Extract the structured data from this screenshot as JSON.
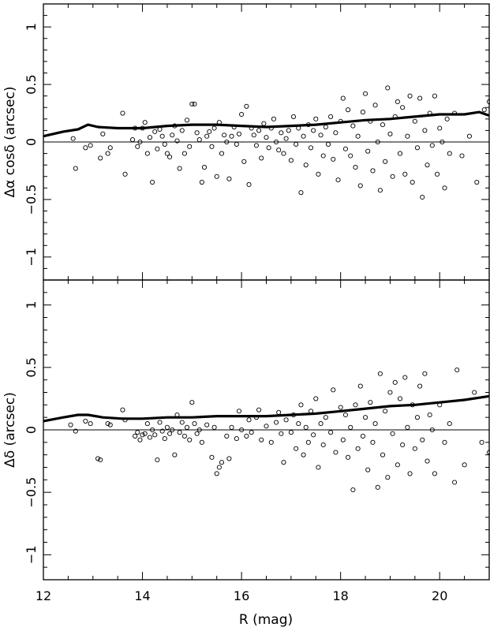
{
  "chart_data": [
    {
      "type": "scatter",
      "panel": "top",
      "ylabel": "Δα cosδ  (arcsec)",
      "xlim": [
        12,
        21
      ],
      "ylim": [
        -1.2,
        1.2
      ],
      "yticks": [
        -1,
        -0.5,
        0,
        0.5,
        1
      ],
      "ytick_labels": [
        "−1",
        "−0.5",
        "0",
        "0.5",
        "1"
      ],
      "zero_line": 0,
      "trend": {
        "x": [
          12.0,
          12.4,
          12.7,
          12.9,
          13.1,
          13.5,
          14.0,
          14.5,
          15.0,
          15.5,
          16.0,
          16.5,
          17.0,
          17.5,
          18.0,
          18.5,
          19.0,
          19.5,
          20.0,
          20.5,
          20.8,
          21.0
        ],
        "y": [
          0.05,
          0.09,
          0.11,
          0.15,
          0.13,
          0.12,
          0.12,
          0.14,
          0.15,
          0.15,
          0.14,
          0.13,
          0.14,
          0.15,
          0.17,
          0.19,
          0.2,
          0.22,
          0.24,
          0.24,
          0.26,
          0.23
        ]
      },
      "points": [
        [
          12.6,
          0.03
        ],
        [
          12.65,
          -0.23
        ],
        [
          12.85,
          -0.05
        ],
        [
          12.95,
          -0.03
        ],
        [
          13.15,
          -0.14
        ],
        [
          13.2,
          0.07
        ],
        [
          13.3,
          -0.1
        ],
        [
          13.35,
          -0.05
        ],
        [
          13.6,
          0.25
        ],
        [
          13.65,
          -0.28
        ],
        [
          13.8,
          0.02
        ],
        [
          13.85,
          0.12
        ],
        [
          13.9,
          -0.04
        ],
        [
          13.95,
          0.0
        ],
        [
          14.0,
          0.12
        ],
        [
          14.05,
          0.17
        ],
        [
          14.1,
          -0.1
        ],
        [
          14.15,
          0.04
        ],
        [
          14.2,
          -0.35
        ],
        [
          14.25,
          0.09
        ],
        [
          14.3,
          -0.06
        ],
        [
          14.35,
          0.11
        ],
        [
          14.4,
          0.05
        ],
        [
          14.45,
          -0.02
        ],
        [
          14.5,
          -0.1
        ],
        [
          14.55,
          -0.13
        ],
        [
          14.6,
          0.06
        ],
        [
          14.65,
          0.14
        ],
        [
          14.7,
          0.01
        ],
        [
          14.75,
          -0.23
        ],
        [
          14.8,
          0.1
        ],
        [
          14.85,
          -0.1
        ],
        [
          14.9,
          0.19
        ],
        [
          14.95,
          -0.04
        ],
        [
          15.0,
          0.33
        ],
        [
          15.05,
          0.33
        ],
        [
          15.1,
          0.08
        ],
        [
          15.15,
          0.02
        ],
        [
          15.2,
          -0.35
        ],
        [
          15.25,
          -0.22
        ],
        [
          15.3,
          0.05
        ],
        [
          15.35,
          0.09
        ],
        [
          15.4,
          -0.04
        ],
        [
          15.45,
          0.12
        ],
        [
          15.5,
          -0.3
        ],
        [
          15.55,
          0.17
        ],
        [
          15.6,
          -0.1
        ],
        [
          15.65,
          0.06
        ],
        [
          15.7,
          0.0
        ],
        [
          15.75,
          -0.32
        ],
        [
          15.8,
          0.05
        ],
        [
          15.85,
          0.13
        ],
        [
          15.9,
          -0.02
        ],
        [
          15.95,
          0.07
        ],
        [
          16.0,
          0.24
        ],
        [
          16.05,
          -0.17
        ],
        [
          16.1,
          0.31
        ],
        [
          16.15,
          -0.37
        ],
        [
          16.2,
          0.12
        ],
        [
          16.25,
          0.06
        ],
        [
          16.3,
          -0.03
        ],
        [
          16.35,
          0.1
        ],
        [
          16.4,
          -0.14
        ],
        [
          16.45,
          0.16
        ],
        [
          16.5,
          0.04
        ],
        [
          16.55,
          -0.05
        ],
        [
          16.6,
          0.12
        ],
        [
          16.65,
          0.2
        ],
        [
          16.7,
          0.0
        ],
        [
          16.75,
          -0.07
        ],
        [
          16.8,
          0.08
        ],
        [
          16.85,
          -0.1
        ],
        [
          16.9,
          0.03
        ],
        [
          16.95,
          0.1
        ],
        [
          17.0,
          -0.16
        ],
        [
          17.05,
          0.22
        ],
        [
          17.1,
          -0.02
        ],
        [
          17.15,
          0.12
        ],
        [
          17.2,
          -0.44
        ],
        [
          17.25,
          0.05
        ],
        [
          17.3,
          -0.2
        ],
        [
          17.35,
          0.15
        ],
        [
          17.4,
          -0.05
        ],
        [
          17.45,
          0.1
        ],
        [
          17.5,
          0.2
        ],
        [
          17.55,
          -0.28
        ],
        [
          17.6,
          0.06
        ],
        [
          17.65,
          -0.12
        ],
        [
          17.7,
          0.13
        ],
        [
          17.75,
          -0.02
        ],
        [
          17.8,
          0.22
        ],
        [
          17.85,
          -0.15
        ],
        [
          17.9,
          0.08
        ],
        [
          17.95,
          -0.33
        ],
        [
          18.0,
          0.18
        ],
        [
          18.05,
          0.38
        ],
        [
          18.1,
          -0.06
        ],
        [
          18.15,
          0.28
        ],
        [
          18.2,
          -0.12
        ],
        [
          18.25,
          0.14
        ],
        [
          18.3,
          -0.22
        ],
        [
          18.35,
          0.05
        ],
        [
          18.4,
          -0.38
        ],
        [
          18.45,
          0.26
        ],
        [
          18.5,
          0.42
        ],
        [
          18.55,
          -0.08
        ],
        [
          18.6,
          0.18
        ],
        [
          18.65,
          -0.25
        ],
        [
          18.7,
          0.32
        ],
        [
          18.75,
          0.0
        ],
        [
          18.8,
          -0.42
        ],
        [
          18.85,
          0.15
        ],
        [
          18.9,
          -0.17
        ],
        [
          18.95,
          0.47
        ],
        [
          19.0,
          0.07
        ],
        [
          19.05,
          -0.3
        ],
        [
          19.1,
          0.22
        ],
        [
          19.15,
          0.35
        ],
        [
          19.2,
          -0.1
        ],
        [
          19.25,
          0.3
        ],
        [
          19.3,
          -0.28
        ],
        [
          19.35,
          0.05
        ],
        [
          19.4,
          0.4
        ],
        [
          19.45,
          -0.35
        ],
        [
          19.5,
          0.18
        ],
        [
          19.55,
          -0.05
        ],
        [
          19.6,
          0.38
        ],
        [
          19.65,
          -0.48
        ],
        [
          19.7,
          0.1
        ],
        [
          19.75,
          -0.2
        ],
        [
          19.8,
          0.25
        ],
        [
          19.85,
          -0.03
        ],
        [
          19.9,
          0.4
        ],
        [
          19.95,
          -0.28
        ],
        [
          20.0,
          0.12
        ],
        [
          20.05,
          0.0
        ],
        [
          20.1,
          -0.4
        ],
        [
          20.15,
          0.2
        ],
        [
          20.2,
          -0.1
        ],
        [
          20.3,
          0.25
        ],
        [
          20.45,
          -0.12
        ],
        [
          20.6,
          0.05
        ],
        [
          20.75,
          -0.35
        ],
        [
          20.9,
          0.28
        ],
        [
          21.0,
          0.35
        ]
      ]
    },
    {
      "type": "scatter",
      "panel": "bottom",
      "ylabel": "Δδ  (arcsec)",
      "xlabel": "R (mag)",
      "xlim": [
        12,
        21
      ],
      "ylim": [
        -1.2,
        1.2
      ],
      "xticks": [
        12,
        14,
        16,
        18,
        20
      ],
      "xtick_labels": [
        "12",
        "14",
        "16",
        "18",
        "20"
      ],
      "yticks": [
        -1,
        -0.5,
        0,
        0.5,
        1
      ],
      "ytick_labels": [
        "−1",
        "−0.5",
        "0",
        "0.5",
        "1"
      ],
      "zero_line": 0,
      "trend": {
        "x": [
          12.0,
          12.4,
          12.7,
          12.9,
          13.2,
          13.6,
          14.0,
          14.5,
          15.0,
          15.5,
          16.0,
          16.5,
          17.0,
          17.5,
          18.0,
          18.5,
          19.0,
          19.5,
          20.0,
          20.5,
          21.0
        ],
        "y": [
          0.07,
          0.1,
          0.12,
          0.12,
          0.1,
          0.09,
          0.09,
          0.1,
          0.1,
          0.11,
          0.11,
          0.11,
          0.12,
          0.13,
          0.15,
          0.17,
          0.19,
          0.2,
          0.22,
          0.24,
          0.27
        ]
      },
      "points": [
        [
          12.55,
          0.04
        ],
        [
          12.65,
          -0.01
        ],
        [
          12.85,
          0.07
        ],
        [
          12.95,
          0.05
        ],
        [
          13.1,
          -0.23
        ],
        [
          13.15,
          -0.24
        ],
        [
          13.3,
          0.05
        ],
        [
          13.35,
          0.04
        ],
        [
          13.6,
          0.16
        ],
        [
          13.65,
          0.08
        ],
        [
          13.85,
          -0.05
        ],
        [
          13.9,
          -0.02
        ],
        [
          13.95,
          -0.08
        ],
        [
          14.0,
          -0.04
        ],
        [
          14.05,
          -0.03
        ],
        [
          14.1,
          0.05
        ],
        [
          14.15,
          -0.06
        ],
        [
          14.2,
          0.0
        ],
        [
          14.25,
          -0.04
        ],
        [
          14.3,
          -0.24
        ],
        [
          14.35,
          0.06
        ],
        [
          14.4,
          -0.01
        ],
        [
          14.45,
          -0.07
        ],
        [
          14.5,
          0.02
        ],
        [
          14.55,
          -0.03
        ],
        [
          14.6,
          0.0
        ],
        [
          14.65,
          -0.2
        ],
        [
          14.7,
          0.12
        ],
        [
          14.75,
          -0.02
        ],
        [
          14.8,
          0.06
        ],
        [
          14.85,
          -0.05
        ],
        [
          14.9,
          0.02
        ],
        [
          14.95,
          -0.08
        ],
        [
          15.0,
          0.22
        ],
        [
          15.05,
          0.05
        ],
        [
          15.1,
          -0.03
        ],
        [
          15.15,
          0.0
        ],
        [
          15.2,
          -0.1
        ],
        [
          15.3,
          0.04
        ],
        [
          15.4,
          -0.22
        ],
        [
          15.45,
          0.02
        ],
        [
          15.5,
          -0.35
        ],
        [
          15.55,
          -0.3
        ],
        [
          15.6,
          -0.26
        ],
        [
          15.7,
          -0.05
        ],
        [
          15.75,
          -0.23
        ],
        [
          15.8,
          0.02
        ],
        [
          15.9,
          -0.07
        ],
        [
          15.95,
          0.15
        ],
        [
          16.0,
          0.0
        ],
        [
          16.1,
          -0.05
        ],
        [
          16.15,
          0.08
        ],
        [
          16.2,
          -0.02
        ],
        [
          16.3,
          0.1
        ],
        [
          16.35,
          0.16
        ],
        [
          16.4,
          -0.08
        ],
        [
          16.5,
          0.03
        ],
        [
          16.6,
          -0.1
        ],
        [
          16.7,
          0.06
        ],
        [
          16.75,
          0.14
        ],
        [
          16.8,
          -0.03
        ],
        [
          16.85,
          -0.26
        ],
        [
          16.9,
          0.08
        ],
        [
          17.0,
          -0.02
        ],
        [
          17.05,
          0.12
        ],
        [
          17.1,
          -0.15
        ],
        [
          17.15,
          0.05
        ],
        [
          17.2,
          0.2
        ],
        [
          17.25,
          -0.2
        ],
        [
          17.3,
          0.02
        ],
        [
          17.35,
          -0.1
        ],
        [
          17.4,
          0.15
        ],
        [
          17.45,
          -0.04
        ],
        [
          17.5,
          0.25
        ],
        [
          17.55,
          -0.3
        ],
        [
          17.6,
          0.05
        ],
        [
          17.65,
          -0.12
        ],
        [
          17.7,
          0.1
        ],
        [
          17.8,
          -0.02
        ],
        [
          17.85,
          0.32
        ],
        [
          17.9,
          -0.18
        ],
        [
          18.0,
          0.18
        ],
        [
          18.05,
          -0.08
        ],
        [
          18.1,
          0.12
        ],
        [
          18.15,
          -0.22
        ],
        [
          18.2,
          0.02
        ],
        [
          18.25,
          -0.48
        ],
        [
          18.3,
          0.2
        ],
        [
          18.35,
          -0.15
        ],
        [
          18.4,
          0.35
        ],
        [
          18.45,
          -0.05
        ],
        [
          18.5,
          0.1
        ],
        [
          18.55,
          -0.32
        ],
        [
          18.6,
          0.22
        ],
        [
          18.65,
          -0.1
        ],
        [
          18.7,
          0.05
        ],
        [
          18.75,
          -0.46
        ],
        [
          18.8,
          0.45
        ],
        [
          18.85,
          -0.2
        ],
        [
          18.9,
          0.15
        ],
        [
          18.95,
          -0.38
        ],
        [
          19.0,
          0.3
        ],
        [
          19.05,
          -0.03
        ],
        [
          19.1,
          0.38
        ],
        [
          19.15,
          -0.28
        ],
        [
          19.2,
          0.25
        ],
        [
          19.25,
          -0.12
        ],
        [
          19.3,
          0.42
        ],
        [
          19.35,
          0.02
        ],
        [
          19.4,
          -0.35
        ],
        [
          19.45,
          0.2
        ],
        [
          19.5,
          -0.15
        ],
        [
          19.55,
          0.1
        ],
        [
          19.6,
          0.35
        ],
        [
          19.65,
          -0.08
        ],
        [
          19.7,
          0.45
        ],
        [
          19.75,
          -0.25
        ],
        [
          19.8,
          0.12
        ],
        [
          19.85,
          0.0
        ],
        [
          19.9,
          -0.35
        ],
        [
          20.0,
          0.2
        ],
        [
          20.1,
          -0.1
        ],
        [
          20.2,
          0.05
        ],
        [
          20.3,
          -0.42
        ],
        [
          20.35,
          0.48
        ],
        [
          20.5,
          -0.28
        ],
        [
          20.7,
          0.3
        ],
        [
          20.85,
          -0.1
        ],
        [
          21.0,
          -0.18
        ]
      ]
    }
  ]
}
